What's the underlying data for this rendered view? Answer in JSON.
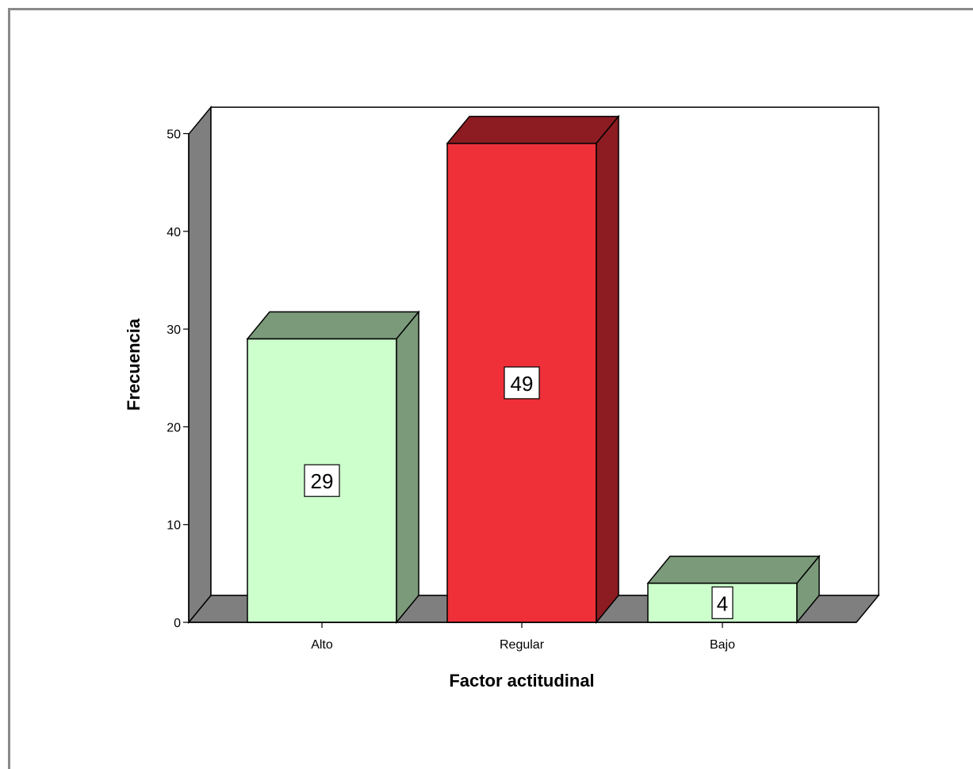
{
  "chart_data": {
    "type": "bar",
    "style": "3d",
    "categories": [
      "Alto",
      "Regular",
      "Bajo"
    ],
    "values": [
      29,
      49,
      4
    ],
    "colors": [
      {
        "front": "#ccffcc",
        "side": "#7a9a7a"
      },
      {
        "front": "#ef3039",
        "side": "#8c1c22"
      },
      {
        "front": "#ccffcc",
        "side": "#7a9a7a"
      }
    ],
    "data_labels": [
      "29",
      "49",
      "4"
    ],
    "xlabel": "Factor actitudinal",
    "ylabel": "Frecuencia",
    "ylim": [
      0,
      50
    ],
    "yticks": [
      "0",
      "10",
      "20",
      "30",
      "40",
      "50"
    ],
    "grid": false,
    "legend": "none",
    "wall_color": "#7f7f7f"
  }
}
